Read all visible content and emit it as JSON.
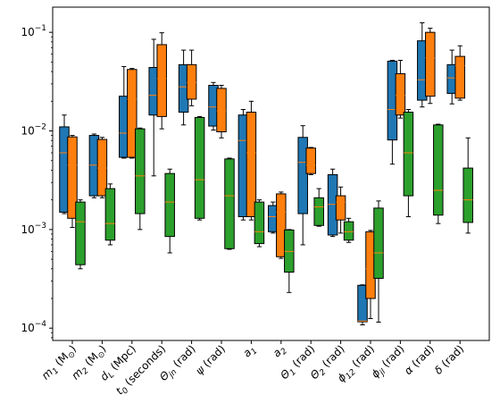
{
  "chart_data": {
    "type": "boxplot",
    "yscale": "log",
    "ylim": [
      7.5e-05,
      0.18
    ],
    "grid": false,
    "legend": "none",
    "title": "",
    "xlabel": "",
    "ylabel": "",
    "y_ticks": [
      {
        "value": 0.0001,
        "label": "10",
        "exp": "−4"
      },
      {
        "value": 0.001,
        "label": "10",
        "exp": "−3"
      },
      {
        "value": 0.01,
        "label": "10",
        "exp": "−2"
      },
      {
        "value": 0.1,
        "label": "10",
        "exp": "−1"
      }
    ],
    "categories": [
      {
        "base": "m",
        "sub": "1",
        "suffix": " (M",
        "sub2": "⊙",
        "end": ")"
      },
      {
        "base": "m",
        "sub": "2",
        "suffix": " (M",
        "sub2": "⊙",
        "end": ")"
      },
      {
        "base": "d",
        "sub": "L",
        "suffix": " (Mpc)",
        "sub2": "",
        "end": ""
      },
      {
        "base": "t",
        "sub": "0",
        "suffix": " (seconds)",
        "sub2": "",
        "end": ""
      },
      {
        "base": "Θ",
        "sub": "jn",
        "suffix": " (rad)",
        "sub2": "",
        "end": ""
      },
      {
        "base": "ψ",
        "sub": "",
        "suffix": " (rad)",
        "sub2": "",
        "end": ""
      },
      {
        "base": "a",
        "sub": "1",
        "suffix": "",
        "sub2": "",
        "end": ""
      },
      {
        "base": "a",
        "sub": "2",
        "suffix": "",
        "sub2": "",
        "end": ""
      },
      {
        "base": "Θ",
        "sub": "1",
        "suffix": " (rad)",
        "sub2": "",
        "end": ""
      },
      {
        "base": "Θ",
        "sub": "2",
        "suffix": " (rad)",
        "sub2": "",
        "end": ""
      },
      {
        "base": "ϕ",
        "sub": "12",
        "suffix": " (rad)",
        "sub2": "",
        "end": ""
      },
      {
        "base": "ϕ",
        "sub": "jl",
        "suffix": " (rad)",
        "sub2": "",
        "end": ""
      },
      {
        "base": "α",
        "sub": "",
        "suffix": " (rad)",
        "sub2": "",
        "end": ""
      },
      {
        "base": "δ",
        "sub": "",
        "suffix": " (rad)",
        "sub2": "",
        "end": ""
      }
    ],
    "series": [
      {
        "color": "#1f77b4",
        "boxes": [
          {
            "whislo": 0.00145,
            "q1": 0.0015,
            "med": 0.006,
            "q3": 0.011,
            "whishi": 0.0145
          },
          {
            "whislo": 0.0021,
            "q1": 0.0022,
            "med": 0.0045,
            "q3": 0.009,
            "whishi": 0.0093
          },
          {
            "whislo": 0.0053,
            "q1": 0.0054,
            "med": 0.0095,
            "q3": 0.0225,
            "whishi": 0.045
          },
          {
            "whislo": 0.0035,
            "q1": 0.0145,
            "med": 0.023,
            "q3": 0.044,
            "whishi": 0.085
          },
          {
            "whislo": 0.0115,
            "q1": 0.0155,
            "med": 0.028,
            "q3": 0.047,
            "whishi": 0.066
          },
          {
            "whislo": 0.0102,
            "q1": 0.0112,
            "med": 0.0175,
            "q3": 0.029,
            "whishi": 0.031
          },
          {
            "whislo": 0.00125,
            "q1": 0.00135,
            "med": 0.008,
            "q3": 0.0145,
            "whishi": 0.0165
          },
          {
            "whislo": 0.00092,
            "q1": 0.00095,
            "med": 0.00135,
            "q3": 0.00175,
            "whishi": 0.0019
          },
          {
            "whislo": 0.0007,
            "q1": 0.00145,
            "med": 0.0048,
            "q3": 0.0086,
            "whishi": 0.0113
          },
          {
            "whislo": 0.00085,
            "q1": 0.00088,
            "med": 0.0018,
            "q3": 0.0036,
            "whishi": 0.0041
          },
          {
            "whislo": 0.000108,
            "q1": 0.000116,
            "med": 0.000118,
            "q3": 0.000272,
            "whishi": 0.000275
          },
          {
            "whislo": 0.0046,
            "q1": 0.0081,
            "med": 0.0165,
            "q3": 0.051,
            "whishi": 0.052
          },
          {
            "whislo": 0.0175,
            "q1": 0.0205,
            "med": 0.033,
            "q3": 0.082,
            "whishi": 0.125
          },
          {
            "whislo": 0.0188,
            "q1": 0.024,
            "med": 0.0345,
            "q3": 0.047,
            "whishi": 0.066
          }
        ]
      },
      {
        "color": "#ff7f0e",
        "boxes": [
          {
            "whislo": 0.00105,
            "q1": 0.0013,
            "med": 0.0045,
            "q3": 0.0087,
            "whishi": 0.009
          },
          {
            "whislo": 0.0021,
            "q1": 0.0022,
            "med": 0.0042,
            "q3": 0.0082,
            "whishi": 0.0086
          },
          {
            "whislo": 0.0053,
            "q1": 0.0054,
            "med": 0.021,
            "q3": 0.042,
            "whishi": 0.043
          },
          {
            "whislo": 0.0105,
            "q1": 0.014,
            "med": 0.034,
            "q3": 0.075,
            "whishi": 0.099
          },
          {
            "whislo": 0.018,
            "q1": 0.021,
            "med": 0.031,
            "q3": 0.047,
            "whishi": 0.066
          },
          {
            "whislo": 0.0085,
            "q1": 0.0098,
            "med": 0.016,
            "q3": 0.027,
            "whishi": 0.029
          },
          {
            "whislo": 0.00125,
            "q1": 0.00135,
            "med": 0.006,
            "q3": 0.0155,
            "whishi": 0.02
          },
          {
            "whislo": 0.00051,
            "q1": 0.00053,
            "med": 0.0015,
            "q3": 0.0023,
            "whishi": 0.0024
          },
          {
            "whislo": 0.0036,
            "q1": 0.0037,
            "med": 0.0045,
            "q3": 0.0067,
            "whishi": 0.0068
          },
          {
            "whislo": 0.00092,
            "q1": 0.00125,
            "med": 0.0019,
            "q3": 0.0022,
            "whishi": 0.0027
          },
          {
            "whislo": 0.000125,
            "q1": 0.0002,
            "med": 0.0004,
            "q3": 0.00095,
            "whishi": 0.00098
          },
          {
            "whislo": 0.0135,
            "q1": 0.0145,
            "med": 0.023,
            "q3": 0.038,
            "whishi": 0.052
          },
          {
            "whislo": 0.019,
            "q1": 0.0225,
            "med": 0.055,
            "q3": 0.1,
            "whishi": 0.11
          },
          {
            "whislo": 0.0205,
            "q1": 0.0215,
            "med": 0.046,
            "q3": 0.057,
            "whishi": 0.073
          }
        ]
      },
      {
        "color": "#2ca02c",
        "boxes": [
          {
            "whislo": 0.0004,
            "q1": 0.00044,
            "med": 0.0012,
            "q3": 0.0019,
            "whishi": 0.002
          },
          {
            "whislo": 0.0007,
            "q1": 0.00078,
            "med": 0.00115,
            "q3": 0.0026,
            "whishi": 0.0029
          },
          {
            "whislo": 0.001,
            "q1": 0.00145,
            "med": 0.0035,
            "q3": 0.0105,
            "whishi": 0.0107
          },
          {
            "whislo": 0.00058,
            "q1": 0.00085,
            "med": 0.0019,
            "q3": 0.0037,
            "whishi": 0.0041
          },
          {
            "whislo": 0.00125,
            "q1": 0.0013,
            "med": 0.0032,
            "q3": 0.0137,
            "whishi": 0.014
          },
          {
            "whislo": 0.00063,
            "q1": 0.00064,
            "med": 0.0022,
            "q3": 0.0052,
            "whishi": 0.0053
          },
          {
            "whislo": 0.00067,
            "q1": 0.00072,
            "med": 0.00095,
            "q3": 0.0019,
            "whishi": 0.002
          },
          {
            "whislo": 0.00023,
            "q1": 0.00037,
            "med": 0.0006,
            "q3": 0.00099,
            "whishi": 0.001
          },
          {
            "whislo": 0.00108,
            "q1": 0.0011,
            "med": 0.0017,
            "q3": 0.0021,
            "whishi": 0.0026
          },
          {
            "whislo": 0.00074,
            "q1": 0.00078,
            "med": 0.00095,
            "q3": 0.0012,
            "whishi": 0.0013
          },
          {
            "whislo": 0.000115,
            "q1": 0.00032,
            "med": 0.00058,
            "q3": 0.00165,
            "whishi": 0.00195
          },
          {
            "whislo": 0.00135,
            "q1": 0.0022,
            "med": 0.006,
            "q3": 0.0155,
            "whishi": 0.0165
          },
          {
            "whislo": 0.00115,
            "q1": 0.0014,
            "med": 0.0025,
            "q3": 0.0115,
            "whishi": 0.0117
          },
          {
            "whislo": 0.00092,
            "q1": 0.00118,
            "med": 0.002,
            "q3": 0.0042,
            "whishi": 0.0085
          }
        ]
      }
    ]
  }
}
